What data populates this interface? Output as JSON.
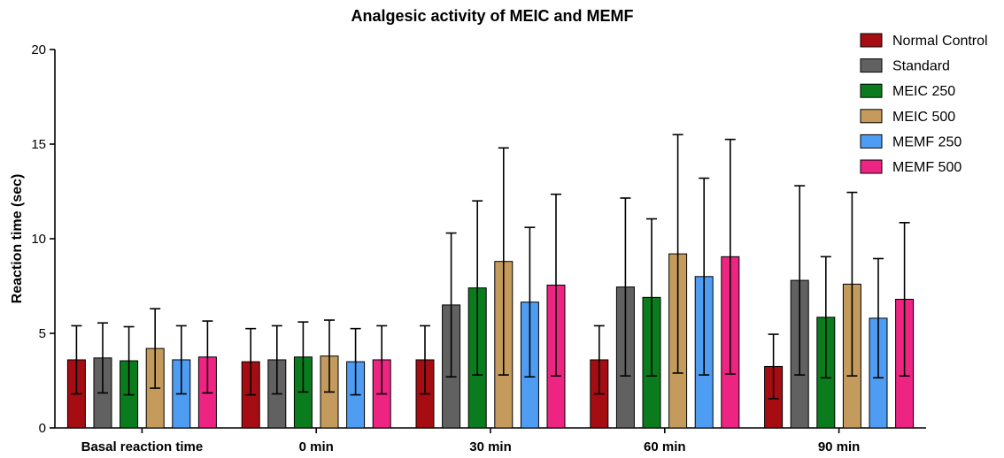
{
  "chart_data": {
    "type": "bar",
    "title": "Analgesic activity of MEIC and MEMF",
    "xlabel": "",
    "ylabel": "Reaction time (sec)",
    "ylim": [
      0,
      20
    ],
    "yticks": [
      0,
      5,
      10,
      15,
      20
    ],
    "grid": false,
    "legend_position": "top-right",
    "categories": [
      "Basal reaction time",
      "0 min",
      "30 min",
      "60 min",
      "90 min"
    ],
    "series": [
      {
        "name": "Normal Control",
        "color": "#a50d12",
        "values": [
          3.6,
          3.5,
          3.6,
          3.6,
          3.25
        ],
        "errors": [
          1.8,
          1.75,
          1.8,
          1.8,
          1.7
        ]
      },
      {
        "name": "Standard",
        "color": "#616161",
        "values": [
          3.7,
          3.6,
          6.5,
          7.45,
          7.8
        ],
        "errors": [
          1.85,
          1.8,
          3.8,
          4.7,
          5.0
        ]
      },
      {
        "name": "MEIC 250",
        "color": "#0a7c1e",
        "values": [
          3.55,
          3.75,
          7.4,
          6.9,
          5.85
        ],
        "errors": [
          1.8,
          1.85,
          4.6,
          4.15,
          3.2
        ]
      },
      {
        "name": "MEIC 500",
        "color": "#c49a5d",
        "values": [
          4.2,
          3.8,
          8.8,
          9.2,
          7.6
        ],
        "errors": [
          2.1,
          1.9,
          6.0,
          6.3,
          4.85
        ]
      },
      {
        "name": "MEMF 250",
        "color": "#4f9df2",
        "values": [
          3.6,
          3.5,
          6.65,
          8.0,
          5.8
        ],
        "errors": [
          1.8,
          1.75,
          3.95,
          5.2,
          3.15
        ]
      },
      {
        "name": "MEMF 500",
        "color": "#ee2482",
        "values": [
          3.75,
          3.6,
          7.55,
          9.05,
          6.8
        ],
        "errors": [
          1.9,
          1.8,
          4.8,
          6.2,
          4.05
        ]
      }
    ]
  }
}
